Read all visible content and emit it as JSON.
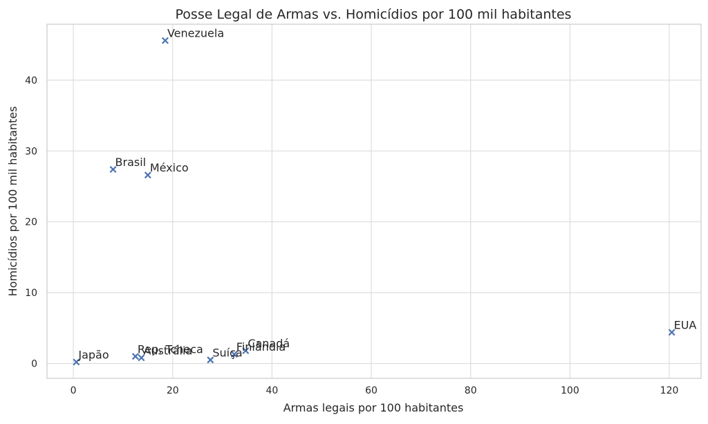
{
  "chart_data": {
    "type": "scatter",
    "title": "Posse Legal de Armas vs. Homicídios por 100 mil habitantes",
    "xlabel": "Armas legais por 100 habitantes",
    "ylabel": "Homicídios por 100 mil habitantes",
    "xlim": [
      -5.3,
      126.4
    ],
    "ylim": [
      -2.1,
      47.9
    ],
    "xticks": [
      0,
      20,
      40,
      60,
      80,
      100,
      120
    ],
    "xtick_labels": [
      "0",
      "20",
      "40",
      "60",
      "80",
      "100",
      "120"
    ],
    "yticks": [
      0,
      10,
      20,
      30,
      40
    ],
    "ytick_labels": [
      "0",
      "10",
      "20",
      "30",
      "40"
    ],
    "grid": true,
    "marker": "x",
    "marker_color": "#4c72b0",
    "points": [
      {
        "label": "Venezuela",
        "x": 18.5,
        "y": 45.6
      },
      {
        "label": "Brasil",
        "x": 8.0,
        "y": 27.4
      },
      {
        "label": "México",
        "x": 15.0,
        "y": 26.6
      },
      {
        "label": "EUA",
        "x": 120.5,
        "y": 4.4
      },
      {
        "label": "Canadá",
        "x": 34.7,
        "y": 1.8
      },
      {
        "label": "Finlândia",
        "x": 32.4,
        "y": 1.3
      },
      {
        "label": "Suíça",
        "x": 27.6,
        "y": 0.5
      },
      {
        "label": "Rep. Tcheca",
        "x": 12.5,
        "y": 1.0
      },
      {
        "label": "Austrália",
        "x": 13.7,
        "y": 0.8
      },
      {
        "label": "Japão",
        "x": 0.6,
        "y": 0.2
      }
    ]
  }
}
